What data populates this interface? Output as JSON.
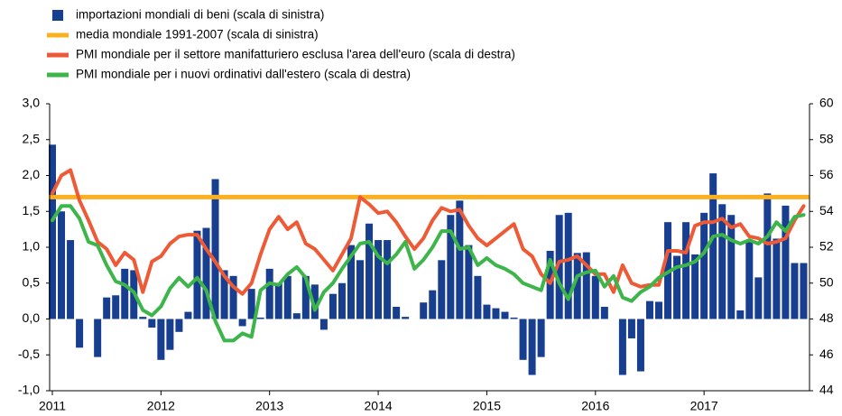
{
  "chart_data": {
    "type": "bar-line",
    "categories": [
      "2011",
      null,
      null,
      null,
      null,
      null,
      null,
      null,
      null,
      null,
      null,
      null,
      "2012",
      null,
      null,
      null,
      null,
      null,
      null,
      null,
      null,
      null,
      null,
      null,
      "2013",
      null,
      null,
      null,
      null,
      null,
      null,
      null,
      null,
      null,
      null,
      null,
      "2014",
      null,
      null,
      null,
      null,
      null,
      null,
      null,
      null,
      null,
      null,
      null,
      "2015",
      null,
      null,
      null,
      null,
      null,
      null,
      null,
      null,
      null,
      null,
      null,
      "2016",
      null,
      null,
      null,
      null,
      null,
      null,
      null,
      null,
      null,
      null,
      null,
      "2017",
      null,
      null,
      null,
      null,
      null,
      null,
      null,
      null,
      null,
      null,
      null
    ],
    "series": [
      {
        "name": "importazioni mondiali di beni (scala di sinistra)",
        "color": "#173e8f",
        "type": "bar",
        "axis": "y",
        "values": [
          2.43,
          1.5,
          1.1,
          -0.4,
          0.0,
          -0.53,
          0.3,
          0.33,
          0.7,
          0.68,
          0.03,
          -0.12,
          -0.57,
          -0.43,
          -0.18,
          0.1,
          1.23,
          1.27,
          1.95,
          0.68,
          0.6,
          -0.1,
          0.42,
          0.02,
          0.7,
          0.5,
          0.6,
          0.08,
          0.6,
          0.48,
          -0.15,
          0.35,
          0.5,
          1.03,
          0.82,
          1.33,
          1.1,
          1.1,
          0.17,
          0.03,
          0.0,
          0.23,
          0.4,
          0.82,
          1.45,
          1.65,
          1.03,
          0.6,
          0.2,
          0.15,
          0.1,
          0.02,
          -0.57,
          -0.78,
          -0.53,
          0.95,
          1.45,
          1.48,
          0.92,
          0.93,
          0.6,
          0.17,
          0.0,
          -0.78,
          -0.27,
          -0.73,
          0.25,
          0.24,
          1.35,
          0.88,
          1.35,
          0.9,
          1.48,
          2.03,
          1.6,
          1.45,
          0.12,
          1.1,
          0.58,
          1.75,
          1.12,
          1.58,
          0.78,
          0.78
        ]
      },
      {
        "name": "media mondiale 1991-2007 (scala di sinistra)",
        "color": "#fbb020",
        "type": "hline",
        "axis": "y",
        "value": 1.7
      },
      {
        "name": "PMI mondiale per il settore manifatturiero esclusa l'area dell'euro (scala di destra)",
        "color": "#ee5a36",
        "type": "line",
        "axis": "y2",
        "values": [
          55.0,
          56.0,
          56.3,
          54.6,
          53.5,
          52.3,
          51.9,
          51.0,
          51.7,
          51.3,
          49.5,
          51.2,
          51.5,
          52.2,
          52.6,
          52.7,
          52.7,
          51.9,
          51.2,
          50.4,
          49.8,
          49.4,
          50.0,
          51.6,
          53.0,
          53.7,
          53.0,
          53.4,
          52.2,
          51.9,
          51.3,
          50.7,
          51.6,
          52.5,
          54.8,
          54.4,
          53.9,
          54.0,
          53.4,
          52.6,
          51.9,
          52.5,
          53.5,
          54.2,
          54.0,
          54.1,
          53.2,
          52.5,
          52.1,
          52.5,
          52.9,
          53.3,
          51.9,
          51.5,
          50.5,
          50.0,
          51.2,
          51.3,
          51.5,
          51.0,
          50.5,
          50.5,
          49.5,
          51.0,
          50.0,
          49.8,
          49.9,
          49.9,
          51.8,
          51.8,
          51.7,
          53.2,
          53.4,
          53.4,
          53.6,
          53.1,
          53.3,
          52.6,
          52.5,
          52.2,
          52.3,
          52.5,
          53.5,
          54.3
        ]
      },
      {
        "name": "PMI mondiale per i nuovi ordinativi dall'estero (scala di destra)",
        "color": "#3db54a",
        "type": "line",
        "axis": "y2",
        "values": [
          53.5,
          54.3,
          54.3,
          53.6,
          52.3,
          52.1,
          51.0,
          50.1,
          49.9,
          49.5,
          48.5,
          48.2,
          48.7,
          49.7,
          50.3,
          49.8,
          50.3,
          49.6,
          47.9,
          46.8,
          46.8,
          47.2,
          47.0,
          49.6,
          50.0,
          49.9,
          50.5,
          50.9,
          50.3,
          48.5,
          49.5,
          50.0,
          50.8,
          51.5,
          52.2,
          52.3,
          51.5,
          51.1,
          51.6,
          52.3,
          50.8,
          51.3,
          52.0,
          52.9,
          52.9,
          51.9,
          52.0,
          51.0,
          51.4,
          51.0,
          50.8,
          50.5,
          50.0,
          49.8,
          49.6,
          51.3,
          50.0,
          49.1,
          50.4,
          50.6,
          50.7,
          49.8,
          50.4,
          49.2,
          49.0,
          49.5,
          49.8,
          50.3,
          50.6,
          50.9,
          51.0,
          51.2,
          51.7,
          52.6,
          52.7,
          52.4,
          52.2,
          52.4,
          52.2,
          52.6,
          53.4,
          52.9,
          53.7,
          53.8
        ]
      }
    ],
    "ylim": [
      -1.0,
      3.0
    ],
    "yticks": [
      {
        "value": -1.0,
        "label": "-1,0"
      },
      {
        "value": -0.5,
        "label": "-0,5"
      },
      {
        "value": 0.0,
        "label": "0,0"
      },
      {
        "value": 0.5,
        "label": "0,5"
      },
      {
        "value": 1.0,
        "label": "1,0"
      },
      {
        "value": 1.5,
        "label": "1,5"
      },
      {
        "value": 2.0,
        "label": "2,0"
      },
      {
        "value": 2.5,
        "label": "2,5"
      },
      {
        "value": 3.0,
        "label": "3,0"
      }
    ],
    "y2lim": [
      44,
      60
    ],
    "y2ticks": [
      44,
      46,
      48,
      50,
      52,
      54,
      56,
      58,
      60
    ],
    "grid": false,
    "legend": "top-left"
  }
}
